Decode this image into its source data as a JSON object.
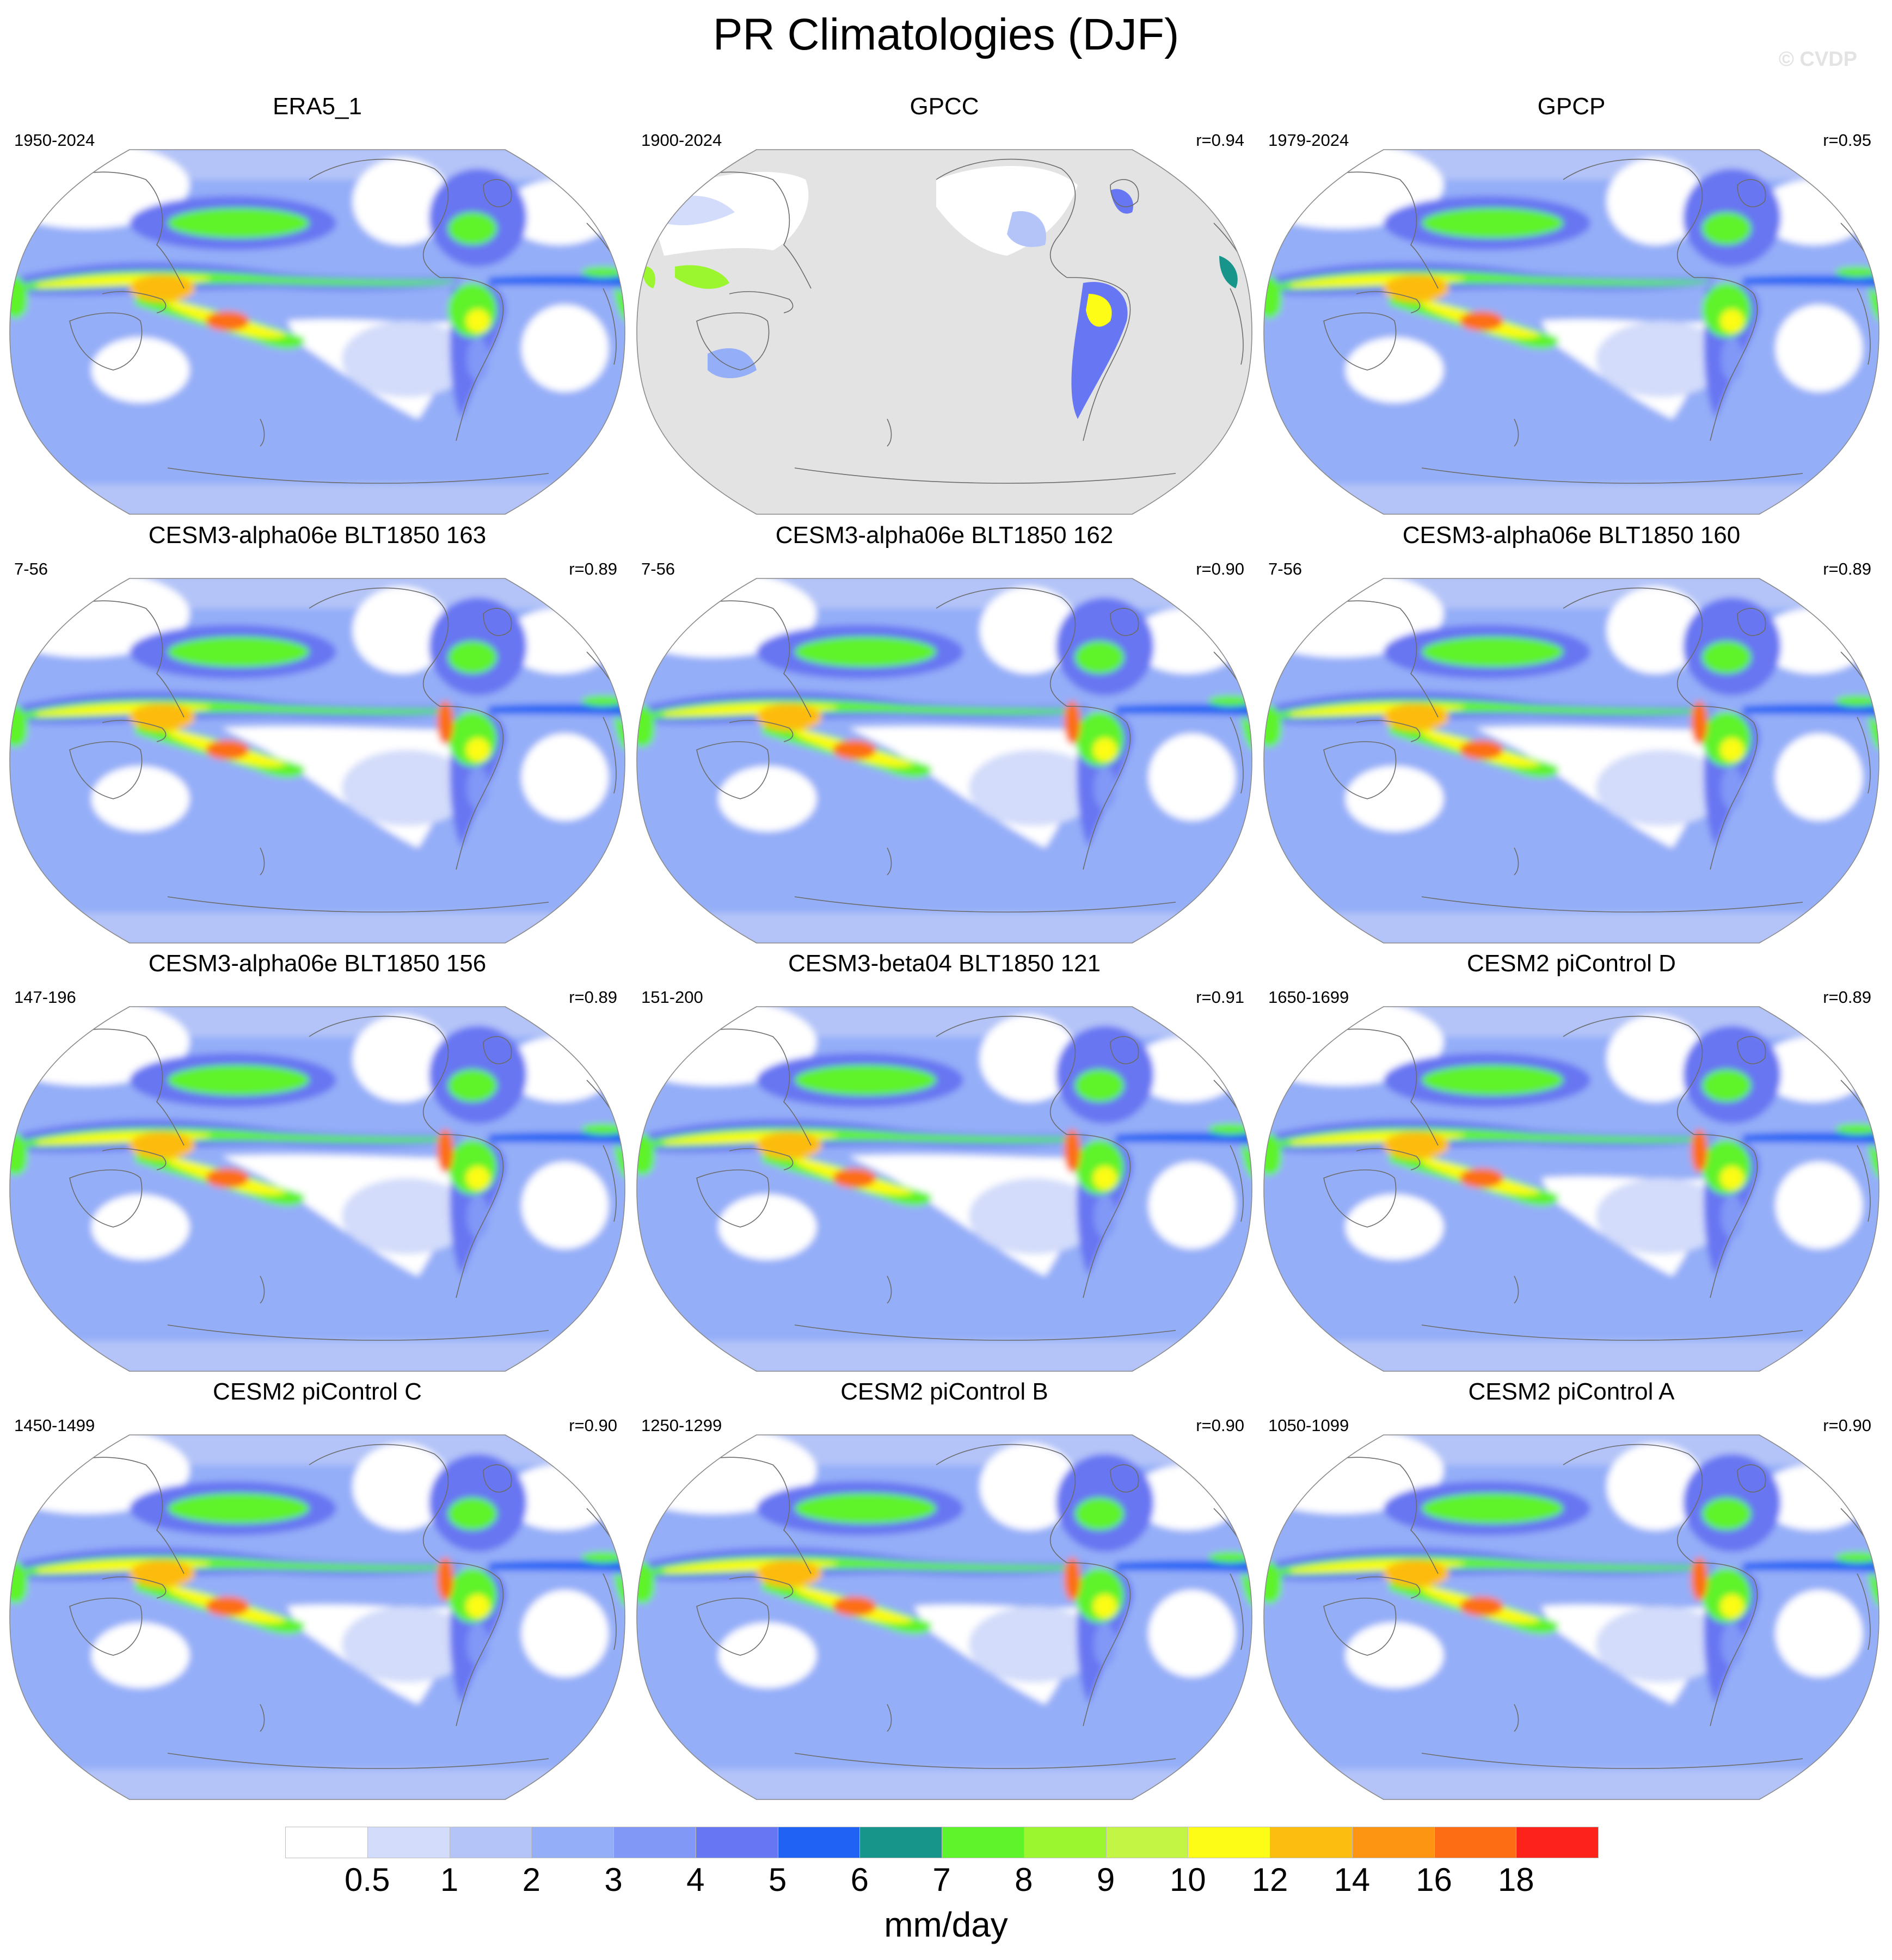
{
  "title": "PR Climatologies (DJF)",
  "watermark": "© CVDP",
  "panels": [
    {
      "title": "ERA5_1",
      "years": "1950-2024",
      "r": "",
      "type": "reanalysis"
    },
    {
      "title": "GPCC",
      "years": "1900-2024",
      "r": "r=0.94",
      "type": "land"
    },
    {
      "title": "GPCP",
      "years": "1979-2024",
      "r": "r=0.95",
      "type": "obs"
    },
    {
      "title": "CESM3-alpha06e BLT1850 163",
      "years": "7-56",
      "r": "r=0.89",
      "type": "model"
    },
    {
      "title": "CESM3-alpha06e BLT1850 162",
      "years": "7-56",
      "r": "r=0.90",
      "type": "model"
    },
    {
      "title": "CESM3-alpha06e BLT1850 160",
      "years": "7-56",
      "r": "r=0.89",
      "type": "model"
    },
    {
      "title": "CESM3-alpha06e BLT1850 156",
      "years": "147-196",
      "r": "r=0.89",
      "type": "model"
    },
    {
      "title": "CESM3-beta04 BLT1850 121",
      "years": "151-200",
      "r": "r=0.91",
      "type": "model"
    },
    {
      "title": "CESM2 piControl D",
      "years": "1650-1699",
      "r": "r=0.89",
      "type": "cesm2"
    },
    {
      "title": "CESM2 piControl C",
      "years": "1450-1499",
      "r": "r=0.90",
      "type": "cesm2"
    },
    {
      "title": "CESM2 piControl B",
      "years": "1250-1299",
      "r": "r=0.90",
      "type": "cesm2"
    },
    {
      "title": "CESM2 piControl A",
      "years": "1050-1099",
      "r": "r=0.90",
      "type": "cesm2"
    }
  ],
  "colorbar": {
    "units": "mm/day",
    "labels": [
      "0.5",
      "1",
      "2",
      "3",
      "4",
      "5",
      "6",
      "7",
      "8",
      "9",
      "10",
      "12",
      "14",
      "16",
      "18"
    ],
    "colors": [
      "#ffffff",
      "#d3dcfa",
      "#b4c4f8",
      "#94aef8",
      "#8198f6",
      "#6776f2",
      "#1f62f4",
      "#17958b",
      "#5ff32b",
      "#9bf52f",
      "#c2f544",
      "#fcfc17",
      "#fdbc10",
      "#fd9512",
      "#fd6e14",
      "#fd231a"
    ]
  }
}
